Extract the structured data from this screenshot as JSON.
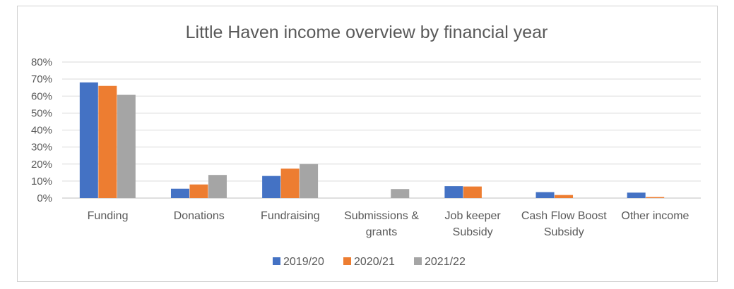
{
  "chart_data": {
    "type": "bar",
    "title": "Little Haven income overview by financial year",
    "xlabel": "",
    "ylabel": "",
    "ylim": [
      0,
      80
    ],
    "yticks": [
      "0%",
      "10%",
      "20%",
      "30%",
      "40%",
      "50%",
      "60%",
      "70%",
      "80%"
    ],
    "grid": true,
    "legend_position": "bottom",
    "categories": [
      [
        "Funding"
      ],
      [
        "Donations"
      ],
      [
        "Fundraising"
      ],
      [
        "Submissions &",
        "grants"
      ],
      [
        "Job keeper",
        "Subsidy"
      ],
      [
        "Cash Flow Boost",
        "Subsidy"
      ],
      [
        "Other income"
      ]
    ],
    "series": [
      {
        "name": "2019/20",
        "color": "#4472c4",
        "values": [
          68,
          5.5,
          13,
          0,
          7,
          3.5,
          3.2
        ]
      },
      {
        "name": "2020/21",
        "color": "#ed7d31",
        "values": [
          66,
          8,
          17.3,
          0,
          6.8,
          1.8,
          0.6
        ]
      },
      {
        "name": "2021/22",
        "color": "#a5a5a5",
        "values": [
          60.7,
          13.6,
          20,
          5.3,
          0,
          0,
          0
        ]
      }
    ]
  }
}
